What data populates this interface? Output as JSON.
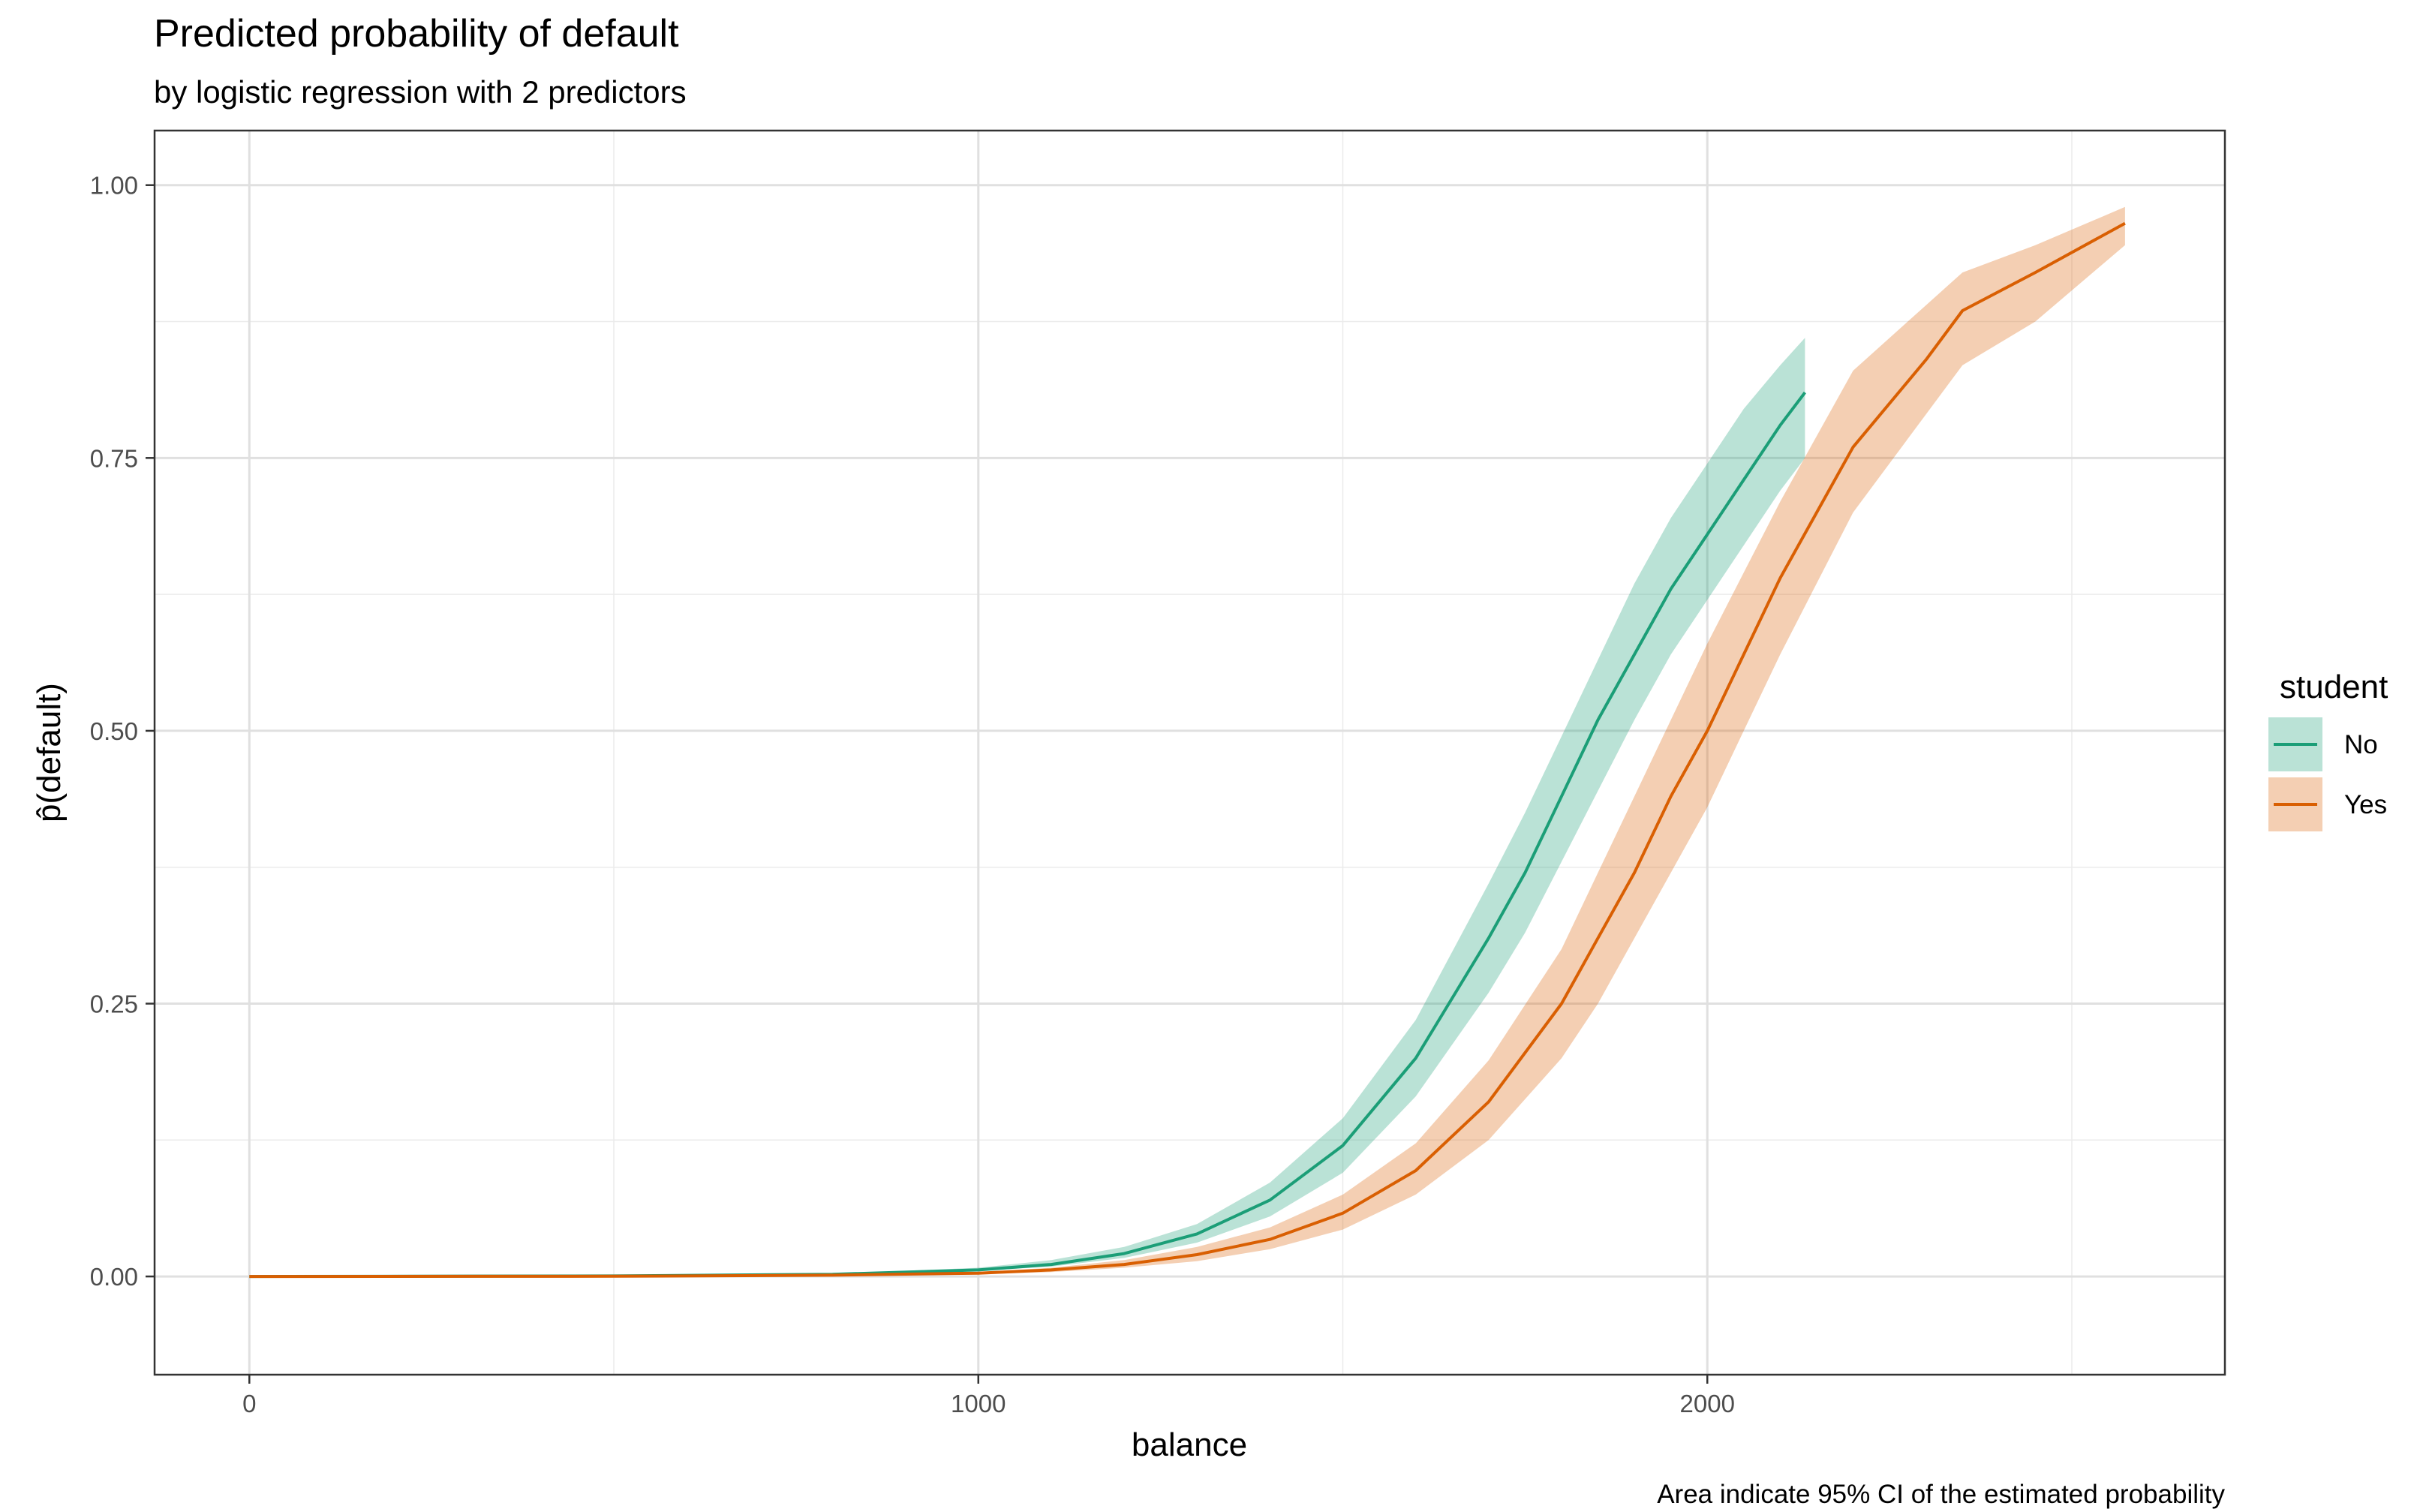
{
  "chart_data": {
    "type": "line",
    "title": "Predicted probability of default",
    "subtitle": "by logistic regression with 2 predictors",
    "xlabel": "balance",
    "ylabel": "p̂(default)",
    "caption": "Area indicate 95% CI of the estimated probability",
    "xlim": [
      -130,
      2710
    ],
    "ylim": [
      -0.09,
      1.05
    ],
    "x_ticks": [
      0,
      1000,
      2000
    ],
    "x_tick_labels": [
      "0",
      "1000",
      "2000"
    ],
    "y_ticks": [
      0,
      0.25,
      0.5,
      0.75,
      1
    ],
    "y_tick_labels": [
      "0.00",
      "0.25",
      "0.50",
      "0.75",
      "1.00"
    ],
    "grid": true,
    "legend": {
      "title": "student",
      "position": "right"
    },
    "series": [
      {
        "name": "No",
        "color": "#1b9e77",
        "band_color": "#1b9e77",
        "x": [
          0,
          500,
          800,
          1000,
          1100,
          1200,
          1300,
          1400,
          1500,
          1600,
          1700,
          1750,
          1800,
          1850,
          1900,
          1950,
          2000,
          2050,
          2100,
          2134
        ],
        "y": [
          0.0,
          0.0005,
          0.002,
          0.006,
          0.011,
          0.021,
          0.039,
          0.07,
          0.12,
          0.2,
          0.31,
          0.37,
          0.44,
          0.51,
          0.57,
          0.63,
          0.68,
          0.73,
          0.78,
          0.81
        ],
        "lower": [
          0.0,
          0.0004,
          0.0016,
          0.005,
          0.009,
          0.017,
          0.031,
          0.055,
          0.095,
          0.165,
          0.26,
          0.315,
          0.38,
          0.445,
          0.51,
          0.57,
          0.62,
          0.67,
          0.72,
          0.75
        ],
        "upper": [
          0.0,
          0.0007,
          0.0025,
          0.008,
          0.015,
          0.027,
          0.048,
          0.086,
          0.145,
          0.235,
          0.36,
          0.425,
          0.495,
          0.565,
          0.635,
          0.695,
          0.745,
          0.795,
          0.835,
          0.86
        ]
      },
      {
        "name": "Yes",
        "color": "#d95f02",
        "band_color": "#d95f02",
        "x": [
          0,
          500,
          800,
          1000,
          1100,
          1200,
          1300,
          1400,
          1500,
          1600,
          1700,
          1800,
          1850,
          1900,
          1950,
          2000,
          2050,
          2100,
          2200,
          2300,
          2350,
          2450,
          2573
        ],
        "y": [
          0.0,
          0.0002,
          0.0012,
          0.003,
          0.006,
          0.011,
          0.02,
          0.034,
          0.058,
          0.097,
          0.16,
          0.25,
          0.31,
          0.37,
          0.44,
          0.5,
          0.57,
          0.64,
          0.76,
          0.84,
          0.885,
          0.92,
          0.965
        ],
        "lower": [
          0.0,
          0.0001,
          0.0009,
          0.002,
          0.004,
          0.008,
          0.014,
          0.025,
          0.043,
          0.075,
          0.125,
          0.2,
          0.25,
          0.31,
          0.37,
          0.43,
          0.5,
          0.57,
          0.7,
          0.79,
          0.835,
          0.875,
          0.945
        ],
        "upper": [
          0.0,
          0.0003,
          0.0016,
          0.004,
          0.008,
          0.015,
          0.027,
          0.045,
          0.075,
          0.122,
          0.198,
          0.3,
          0.37,
          0.44,
          0.51,
          0.58,
          0.645,
          0.71,
          0.83,
          0.89,
          0.92,
          0.945,
          0.98
        ]
      }
    ]
  }
}
